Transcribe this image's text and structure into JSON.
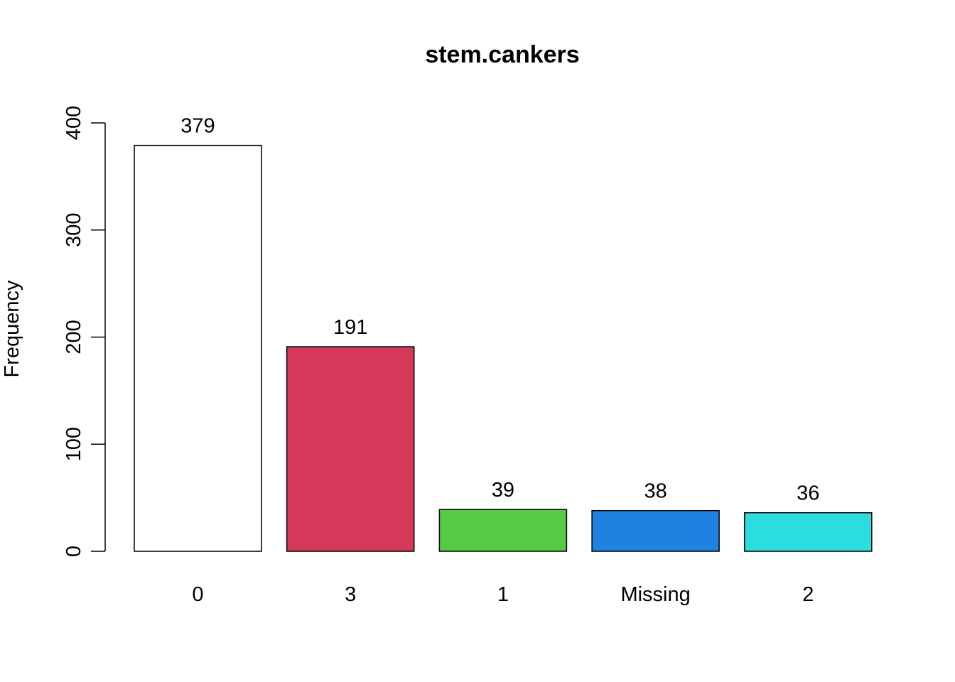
{
  "chart_data": {
    "type": "bar",
    "title": "stem.cankers",
    "xlabel": "",
    "ylabel": "Frequency",
    "categories": [
      "0",
      "3",
      "1",
      "Missing",
      "2"
    ],
    "values": [
      379,
      191,
      39,
      38,
      36
    ],
    "data_labels": [
      "379",
      "191",
      "39",
      "38",
      "36"
    ],
    "colors": [
      "#FFFFFF",
      "#D53A5A",
      "#55CA43",
      "#1F82E0",
      "#2BDDDF"
    ],
    "ylim": [
      0,
      400
    ],
    "yticks": [
      0,
      100,
      200,
      300,
      400
    ],
    "ytick_labels": [
      "0",
      "100",
      "200",
      "300",
      "400"
    ],
    "grid": false,
    "legend": "none"
  }
}
